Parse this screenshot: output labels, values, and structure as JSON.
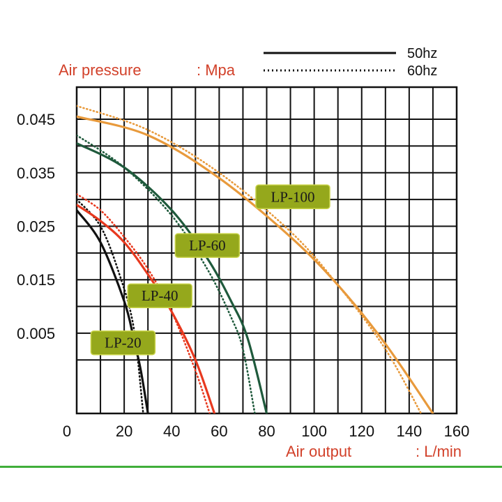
{
  "chart_data": {
    "type": "line",
    "ylabel": "Air pressure",
    "ylabel_unit": ": Mpa",
    "xlabel": "Air output",
    "xlabel_unit": ": L/min",
    "xlim": [
      0,
      160
    ],
    "ylim": [
      -0.01,
      0.051
    ],
    "x_ticks": [
      "0",
      "20",
      "40",
      "60",
      "80",
      "100",
      "120",
      "140",
      "160"
    ],
    "x_tick_values": [
      0,
      20,
      40,
      60,
      80,
      100,
      120,
      140,
      160
    ],
    "y_ticks": [
      "0.045",
      "0.035",
      "0.025",
      "0.015",
      "0.005"
    ],
    "y_tick_values": [
      0.045,
      0.035,
      0.025,
      0.015,
      0.005
    ],
    "grid": true,
    "legend": {
      "placement": "top-right",
      "entries": [
        {
          "label": "50hz",
          "style": "solid"
        },
        {
          "label": "60hz",
          "style": "dotted"
        }
      ]
    },
    "series": [
      {
        "name": "LP-20",
        "hz": "50hz",
        "color": "#111111",
        "x": [
          0,
          10,
          20,
          24,
          27,
          30
        ],
        "y": [
          0.028,
          0.022,
          0.011,
          0.004,
          -0.002,
          -0.01
        ]
      },
      {
        "name": "LP-20",
        "hz": "60hz",
        "color": "#111111",
        "x": [
          0,
          10,
          18,
          24,
          28
        ],
        "y": [
          0.03,
          0.025,
          0.016,
          0.006,
          -0.01
        ]
      },
      {
        "name": "LP-40",
        "hz": "50hz",
        "color": "#e8391f",
        "x": [
          0,
          10,
          20,
          30,
          40,
          50,
          58
        ],
        "y": [
          0.029,
          0.026,
          0.022,
          0.016,
          0.009,
          0.0,
          -0.01
        ]
      },
      {
        "name": "LP-40",
        "hz": "60hz",
        "color": "#e8391f",
        "x": [
          0,
          10,
          20,
          30,
          40,
          50,
          56
        ],
        "y": [
          0.031,
          0.028,
          0.023,
          0.017,
          0.009,
          -0.002,
          -0.01
        ]
      },
      {
        "name": "LP-60",
        "hz": "50hz",
        "color": "#1f5a3c",
        "x": [
          0,
          20,
          40,
          55,
          65,
          72,
          80
        ],
        "y": [
          0.0405,
          0.036,
          0.028,
          0.019,
          0.011,
          0.004,
          -0.01
        ]
      },
      {
        "name": "LP-60",
        "hz": "60hz",
        "color": "#1f5a3c",
        "x": [
          0,
          20,
          40,
          55,
          65,
          70,
          75
        ],
        "y": [
          0.042,
          0.036,
          0.027,
          0.017,
          0.008,
          0.002,
          -0.01
        ]
      },
      {
        "name": "LP-100",
        "hz": "50hz",
        "color": "#e89a3c",
        "x": [
          0,
          30,
          60,
          90,
          110,
          130,
          150
        ],
        "y": [
          0.0455,
          0.042,
          0.034,
          0.023,
          0.014,
          0.003,
          -0.01
        ]
      },
      {
        "name": "LP-100",
        "hz": "60hz",
        "color": "#e89a3c",
        "x": [
          0,
          30,
          60,
          90,
          110,
          130,
          145
        ],
        "y": [
          0.0475,
          0.043,
          0.035,
          0.024,
          0.014,
          0.002,
          -0.01
        ]
      }
    ],
    "curve_labels": [
      {
        "text": "LP-100",
        "x": 91,
        "y": 0.0305
      },
      {
        "text": "LP-60",
        "x": 55,
        "y": 0.0214
      },
      {
        "text": "LP-40",
        "x": 35,
        "y": 0.012
      },
      {
        "text": "LP-20",
        "x": 19.5,
        "y": 0.0032
      }
    ]
  },
  "colors": {
    "axis_title": "#d2412a",
    "label_fill": "#95a81c",
    "label_stroke": "#c9d34a",
    "rule": "#3fae3a"
  }
}
